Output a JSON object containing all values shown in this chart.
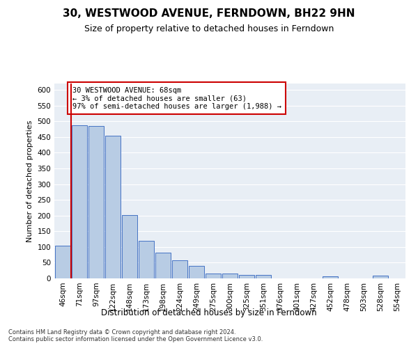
{
  "title": "30, WESTWOOD AVENUE, FERNDOWN, BH22 9HN",
  "subtitle": "Size of property relative to detached houses in Ferndown",
  "xlabel_bottom": "Distribution of detached houses by size in Ferndown",
  "ylabel": "Number of detached properties",
  "categories": [
    "46sqm",
    "71sqm",
    "97sqm",
    "122sqm",
    "148sqm",
    "173sqm",
    "198sqm",
    "224sqm",
    "249sqm",
    "275sqm",
    "300sqm",
    "325sqm",
    "351sqm",
    "376sqm",
    "401sqm",
    "427sqm",
    "452sqm",
    "478sqm",
    "503sqm",
    "528sqm",
    "554sqm"
  ],
  "values": [
    104,
    487,
    485,
    454,
    202,
    120,
    82,
    57,
    40,
    15,
    15,
    10,
    10,
    0,
    0,
    0,
    6,
    0,
    0,
    8,
    0
  ],
  "bar_color": "#b8cce4",
  "bar_edge_color": "#4472c4",
  "annotation_text": "30 WESTWOOD AVENUE: 68sqm\n← 3% of detached houses are smaller (63)\n97% of semi-detached houses are larger (1,988) →",
  "annotation_box_color": "white",
  "annotation_box_edge": "#cc0000",
  "footer": "Contains HM Land Registry data © Crown copyright and database right 2024.\nContains public sector information licensed under the Open Government Licence v3.0.",
  "ylim": [
    0,
    620
  ],
  "yticks": [
    0,
    50,
    100,
    150,
    200,
    250,
    300,
    350,
    400,
    450,
    500,
    550,
    600
  ],
  "bg_color": "#e8eef5",
  "grid_color": "white",
  "title_fontsize": 11,
  "subtitle_fontsize": 9,
  "red_line_color": "#cc0000",
  "footer_fontsize": 6,
  "ylabel_fontsize": 8,
  "tick_fontsize": 7.5,
  "annot_fontsize": 7.5
}
